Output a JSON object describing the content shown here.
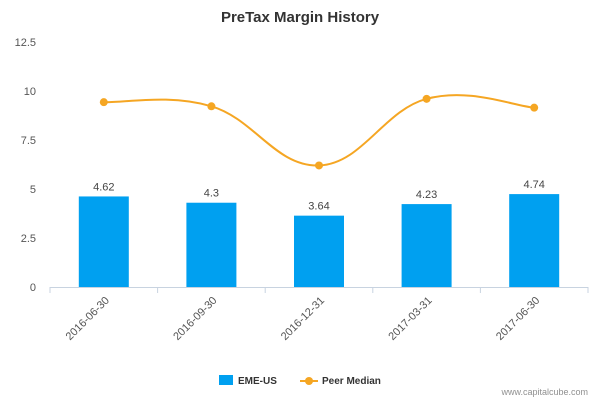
{
  "chart_data": {
    "type": "bar",
    "title": "PreTax Margin History",
    "xlabel": "",
    "ylabel": "",
    "categories": [
      "2016-06-30",
      "2016-09-30",
      "2016-12-31",
      "2017-03-31",
      "2017-06-30"
    ],
    "yticks": [
      "0",
      "2.5",
      "5",
      "7.5",
      "10",
      "12.5"
    ],
    "ylim": [
      0,
      12.5
    ],
    "grid": false,
    "legend_position": "bottom",
    "series": [
      {
        "name": "EME-US",
        "type": "bar",
        "values": [
          4.62,
          4.3,
          3.64,
          4.23,
          4.74
        ],
        "labels": [
          "4.62",
          "4.3",
          "3.64",
          "4.23",
          "4.74"
        ],
        "color": "#00A0F0"
      },
      {
        "name": "Peer Median",
        "type": "line",
        "values": [
          9.43,
          9.22,
          6.2,
          9.6,
          9.15
        ],
        "color": "#F5A623"
      }
    ]
  },
  "credit": "www.capitalcube.com"
}
